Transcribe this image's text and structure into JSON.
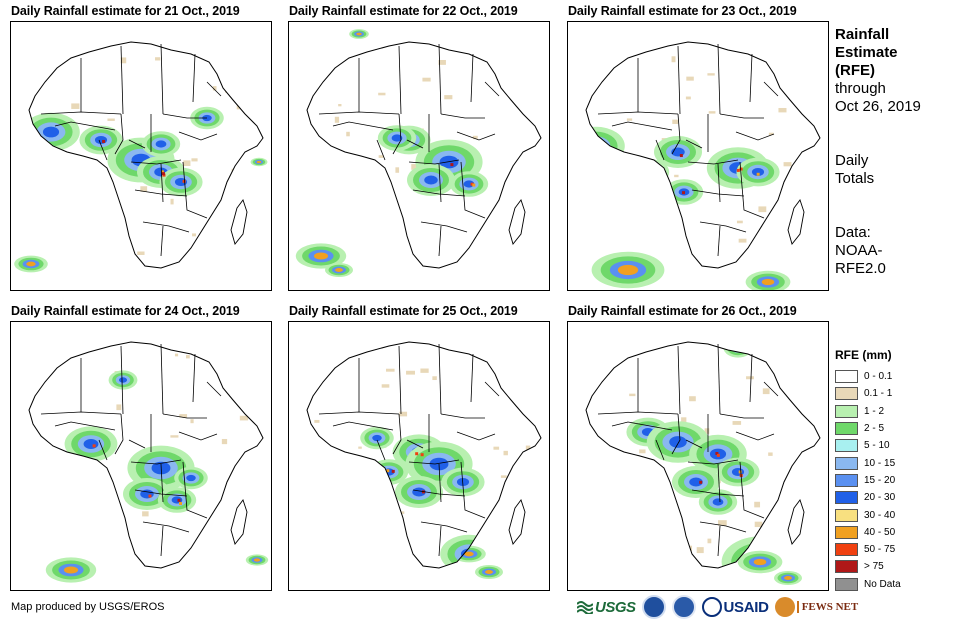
{
  "panels": [
    {
      "title": "Daily Rainfall estimate for 21 Oct., 2019"
    },
    {
      "title": "Daily Rainfall estimate for 22 Oct., 2019"
    },
    {
      "title": "Daily Rainfall estimate for 23 Oct., 2019"
    },
    {
      "title": "Daily Rainfall estimate for 24 Oct., 2019"
    },
    {
      "title": "Daily Rainfall estimate for 25 Oct., 2019"
    },
    {
      "title": "Daily Rainfall estimate for 26 Oct., 2019"
    }
  ],
  "side": {
    "title_lines": [
      "Rainfall",
      "Estimate",
      "(RFE)"
    ],
    "through_lines": [
      "through",
      "Oct 26, 2019"
    ],
    "totals_lines": [
      "Daily",
      "Totals"
    ],
    "data_lines": [
      "Data:",
      "NOAA-",
      "RFE2.0"
    ]
  },
  "legend": {
    "title": "RFE (mm)",
    "items": [
      {
        "label": "0 - 0.1",
        "color": "#ffffff"
      },
      {
        "label": "0.1 - 1",
        "color": "#e8d8b8"
      },
      {
        "label": "1 - 2",
        "color": "#b8f0b0"
      },
      {
        "label": "2 - 5",
        "color": "#6fd86a"
      },
      {
        "label": "5 - 10",
        "color": "#a8f0f0"
      },
      {
        "label": "10 - 15",
        "color": "#8ab8f0"
      },
      {
        "label": "15 - 20",
        "color": "#5a90f0"
      },
      {
        "label": "20 - 30",
        "color": "#2060e8"
      },
      {
        "label": "30 - 40",
        "color": "#f8e080"
      },
      {
        "label": "40 - 50",
        "color": "#f0a020"
      },
      {
        "label": "50 - 75",
        "color": "#f04010"
      },
      {
        "label": "> 75",
        "color": "#b01818"
      },
      {
        "label": "No Data",
        "color": "#909090"
      }
    ]
  },
  "credit": "Map produced by USGS/EROS",
  "logos": {
    "usgs": "USGS",
    "usaid": "USAID",
    "fews": "FEWS NET"
  }
}
